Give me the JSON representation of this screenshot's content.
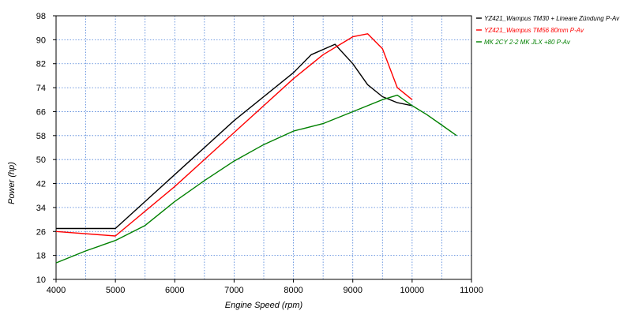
{
  "chart_data": {
    "type": "line",
    "xlabel": "Engine Speed (rpm)",
    "ylabel": "Power (hp)",
    "xlim": [
      4000,
      11000
    ],
    "ylim": [
      10,
      98
    ],
    "x_ticks": [
      4000,
      5000,
      6000,
      7000,
      8000,
      9000,
      10000,
      11000
    ],
    "y_ticks": [
      10,
      18,
      26,
      34,
      42,
      50,
      58,
      66,
      74,
      82,
      90,
      98
    ],
    "x_minor_step": 500,
    "grid": true,
    "grid_style": "dotted",
    "legend_position": "top-right",
    "series": [
      {
        "name": "YZ421_Wampus TM30 + Lineare Zündung  P-Av",
        "color": "#000000",
        "x": [
          4000,
          5000,
          6000,
          7000,
          8000,
          8300,
          8700,
          9000,
          9250,
          9500,
          9750,
          10000
        ],
        "y": [
          27,
          27,
          45,
          63,
          79,
          85,
          88.5,
          82,
          75,
          71,
          69,
          68
        ]
      },
      {
        "name": "YZ421_Wampus TM56  80mm  P-Av",
        "color": "#ff0000",
        "x": [
          4000,
          5000,
          6000,
          7000,
          8000,
          8500,
          9000,
          9250,
          9500,
          9750,
          10000
        ],
        "y": [
          26,
          24.5,
          41,
          59,
          77,
          85,
          91,
          92,
          87,
          74,
          70
        ]
      },
      {
        "name": "MK 2CY 2-2 MK JLX +80  P-Av",
        "color": "#008000",
        "x": [
          4000,
          4500,
          5000,
          5500,
          6000,
          6500,
          7000,
          7500,
          8000,
          8500,
          9000,
          9500,
          9750,
          10000,
          10250,
          10500,
          10750
        ],
        "y": [
          15.5,
          19.5,
          23,
          28,
          36,
          43,
          49.5,
          55,
          59.5,
          62,
          66,
          70,
          71.5,
          68,
          65,
          61.5,
          58
        ]
      }
    ]
  }
}
